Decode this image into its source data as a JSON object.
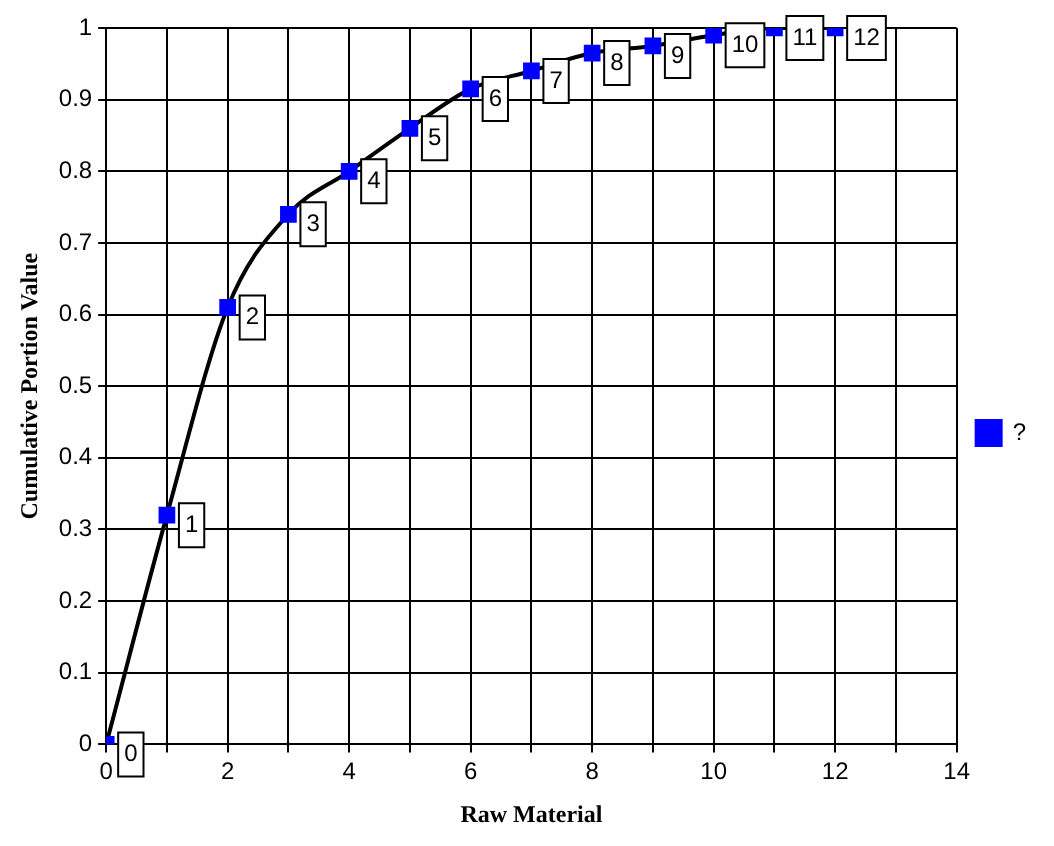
{
  "chart_data": {
    "type": "line",
    "xlabel": "Raw Material",
    "ylabel": "Cumulative Portion Value",
    "x": [
      0,
      1,
      2,
      3,
      4,
      5,
      6,
      7,
      8,
      9,
      10,
      11,
      12
    ],
    "series": [
      {
        "name": "?",
        "color": "#0000ff",
        "values": [
          0,
          0.32,
          0.61,
          0.74,
          0.8,
          0.86,
          0.915,
          0.94,
          0.965,
          0.975,
          0.99,
          1,
          1
        ]
      }
    ],
    "annotations": [
      {
        "text": "0",
        "x": 0,
        "y": 0
      },
      {
        "text": "1",
        "x": 1,
        "y": 0.32
      },
      {
        "text": "2",
        "x": 2,
        "y": 0.61
      },
      {
        "text": "3",
        "x": 3,
        "y": 0.74
      },
      {
        "text": "4",
        "x": 4,
        "y": 0.8
      },
      {
        "text": "5",
        "x": 5,
        "y": 0.86
      },
      {
        "text": "6",
        "x": 6,
        "y": 0.915
      },
      {
        "text": "7",
        "x": 7,
        "y": 0.94
      },
      {
        "text": "8",
        "x": 8,
        "y": 0.965
      },
      {
        "text": "9",
        "x": 9,
        "y": 0.975
      },
      {
        "text": "10",
        "x": 10,
        "y": 0.99
      },
      {
        "text": "11",
        "x": 11,
        "y": 1
      },
      {
        "text": "12",
        "x": 12,
        "y": 1
      }
    ],
    "xlim": [
      0,
      14
    ],
    "xticks": [
      0,
      {
        "value": 1,
        "label": null
      },
      2,
      {
        "value": 3,
        "label": null
      },
      4,
      {
        "value": 5,
        "label": null
      },
      6,
      {
        "value": 7,
        "label": null
      },
      8,
      {
        "value": 9,
        "label": null
      },
      10,
      {
        "value": 11,
        "label": null
      },
      12,
      {
        "value": 13,
        "label": null
      },
      14
    ],
    "ylim": [
      0,
      1
    ],
    "yticks": [
      0,
      0.1,
      0.2,
      0.3,
      0.4,
      0.5,
      0.6,
      0.7,
      0.8,
      0.9,
      1
    ],
    "grid": true,
    "legend": "right",
    "marker": "square",
    "line_style": "solid"
  }
}
